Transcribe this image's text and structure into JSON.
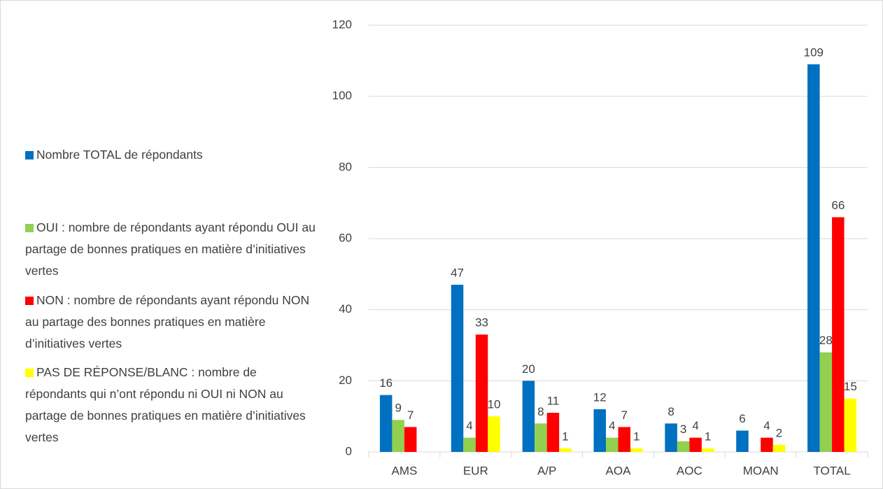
{
  "chart_data": {
    "type": "bar",
    "categories": [
      "AMS",
      "EUR",
      "A/P",
      "AOA",
      "AOC",
      "MOAN",
      "TOTAL"
    ],
    "series": [
      {
        "name": "Nombre TOTAL de répondants",
        "color": "#0070c0",
        "values": [
          16,
          47,
          20,
          12,
          8,
          6,
          109
        ]
      },
      {
        "name": "OUI : nombre de répondants ayant répondu OUI au partage de bonnes pratiques en matière d’initiatives vertes",
        "color": "#92d050",
        "values": [
          9,
          4,
          8,
          4,
          3,
          null,
          28
        ]
      },
      {
        "name": "NON : nombre de répondants ayant répondu NON au partage des bonnes pratiques en matière d’initiatives vertes",
        "color": "#ff0000",
        "values": [
          7,
          33,
          11,
          7,
          4,
          4,
          66
        ]
      },
      {
        "name": "PAS DE RÉPONSE/BLANC : nombre de répondants qui n’ont répondu ni OUI ni NON au partage de bonnes pratiques en matière d’initiatives vertes",
        "color": "#ffff00",
        "values": [
          null,
          10,
          1,
          1,
          1,
          2,
          15
        ]
      }
    ],
    "ylim": [
      0,
      120
    ],
    "yticks": [
      0,
      20,
      40,
      60,
      80,
      100,
      120
    ],
    "grid": true,
    "legend": "left"
  }
}
